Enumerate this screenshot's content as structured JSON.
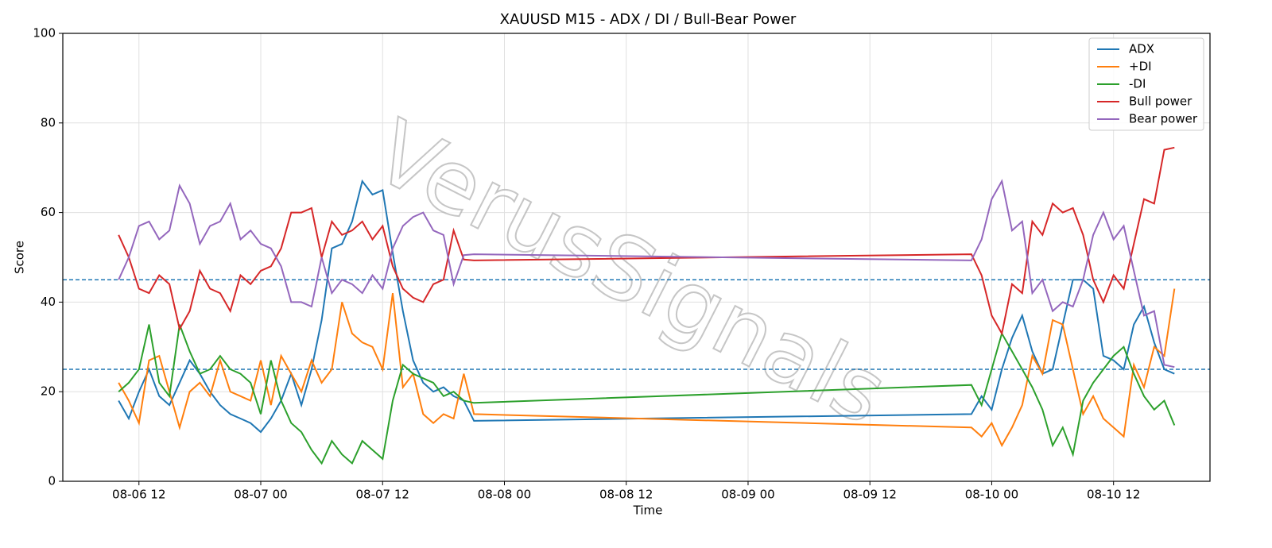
{
  "chart_data": {
    "type": "line",
    "title": "XAUUSD M15 - ADX / DI / Bull-Bear Power",
    "xlabel": "Time",
    "ylabel": "Score",
    "watermark": "VerusSignals",
    "x": [
      "08-06 10",
      "08-06 11",
      "08-06 12",
      "08-06 13",
      "08-06 14",
      "08-06 15",
      "08-06 16",
      "08-06 17",
      "08-06 18",
      "08-06 19",
      "08-06 20",
      "08-06 21",
      "08-06 22",
      "08-06 23",
      "08-07 00",
      "08-07 01",
      "08-07 02",
      "08-07 03",
      "08-07 04",
      "08-07 05",
      "08-07 06",
      "08-07 07",
      "08-07 08",
      "08-07 09",
      "08-07 10",
      "08-07 11",
      "08-07 12",
      "08-07 13",
      "08-07 14",
      "08-07 15",
      "08-07 16",
      "08-07 17",
      "08-07 18",
      "08-07 19",
      "08-07 20",
      "08-07 21",
      "08-09 22",
      "08-09 23",
      "08-10 00",
      "08-10 01",
      "08-10 02",
      "08-10 03",
      "08-10 04",
      "08-10 05",
      "08-10 06",
      "08-10 07",
      "08-10 08",
      "08-10 09",
      "08-10 10",
      "08-10 11",
      "08-10 12",
      "08-10 13",
      "08-10 14",
      "08-10 15",
      "08-10 16",
      "08-10 17",
      "08-10 18"
    ],
    "series": [
      {
        "name": "ADX",
        "color": "#1f77b4",
        "values": [
          18,
          14,
          20,
          25,
          19,
          17,
          22,
          27,
          24,
          20,
          17,
          15,
          14,
          13,
          11,
          14,
          18,
          24,
          17,
          25,
          36,
          52,
          53,
          58,
          67,
          64,
          65,
          51,
          38,
          27,
          22,
          20,
          21,
          19,
          18,
          13.5,
          15,
          19,
          16,
          25,
          32,
          37,
          29,
          24,
          25,
          35,
          45,
          45,
          43,
          28,
          27,
          25,
          35,
          39,
          31,
          25,
          24
        ]
      },
      {
        "name": "+DI",
        "color": "#ff7f0e",
        "values": [
          22,
          18,
          13,
          27,
          28,
          20,
          12,
          20,
          22,
          19,
          27,
          20,
          19,
          18,
          27,
          17,
          28,
          24,
          20,
          27,
          22,
          25,
          40,
          33,
          31,
          30,
          25,
          42,
          21,
          24,
          15,
          13,
          15,
          14,
          24,
          15,
          12,
          10,
          13,
          8,
          12,
          17,
          28,
          24,
          36,
          35,
          25,
          15,
          19,
          14,
          12,
          10,
          26,
          21,
          30,
          28,
          43
        ]
      },
      {
        "name": "-DI",
        "color": "#2ca02c",
        "values": [
          20,
          22,
          25,
          35,
          22,
          19,
          35,
          29,
          24,
          25,
          28,
          25,
          24,
          22,
          15,
          27,
          18,
          13,
          11,
          7,
          4,
          9,
          6,
          4,
          9,
          7,
          5,
          18,
          26,
          24,
          23,
          22,
          19,
          20,
          18,
          17.5,
          21.5,
          17,
          25,
          33,
          29,
          25,
          21,
          16,
          8,
          12,
          6,
          18,
          22,
          25,
          28,
          30,
          24,
          19,
          16,
          18,
          12.5
        ]
      },
      {
        "name": "Bull power",
        "color": "#d62728",
        "values": [
          55,
          50,
          43,
          42,
          46,
          44,
          34,
          38,
          47,
          43,
          42,
          38,
          46,
          44,
          47,
          48,
          52,
          60,
          60,
          61,
          50,
          58,
          55,
          56,
          58,
          54,
          57,
          48,
          43,
          41,
          40,
          44,
          45,
          56,
          49.5,
          49.3,
          50.7,
          46,
          37,
          33,
          44,
          42,
          58,
          55,
          62,
          60,
          61,
          55,
          45,
          40,
          46,
          43,
          53,
          63,
          62,
          74,
          74.5
        ]
      },
      {
        "name": "Bear power",
        "color": "#9467bd",
        "values": [
          45,
          50,
          57,
          58,
          54,
          56,
          66,
          62,
          53,
          57,
          58,
          62,
          54,
          56,
          53,
          52,
          48,
          40,
          40,
          39,
          50,
          42,
          45,
          44,
          42,
          46,
          43,
          52,
          57,
          59,
          60,
          56,
          55,
          44,
          50.5,
          50.7,
          49.3,
          54,
          63,
          67,
          56,
          58,
          42,
          45,
          38,
          40,
          39,
          45,
          55,
          60,
          54,
          57,
          47,
          37,
          38,
          26,
          25.5
        ]
      }
    ],
    "hlines": [
      45,
      25
    ],
    "hline_color": "#1f77b4",
    "xlim": [
      "08-06 04:30",
      "08-10 21:30"
    ],
    "xticks": [
      "08-06 12",
      "08-07 00",
      "08-07 12",
      "08-08 00",
      "08-08 12",
      "08-09 00",
      "08-09 12",
      "08-10 00",
      "08-10 12"
    ],
    "ylim": [
      0,
      100
    ],
    "yticks": [
      0,
      20,
      40,
      60,
      80,
      100
    ],
    "grid": true,
    "legend": "upper right"
  }
}
